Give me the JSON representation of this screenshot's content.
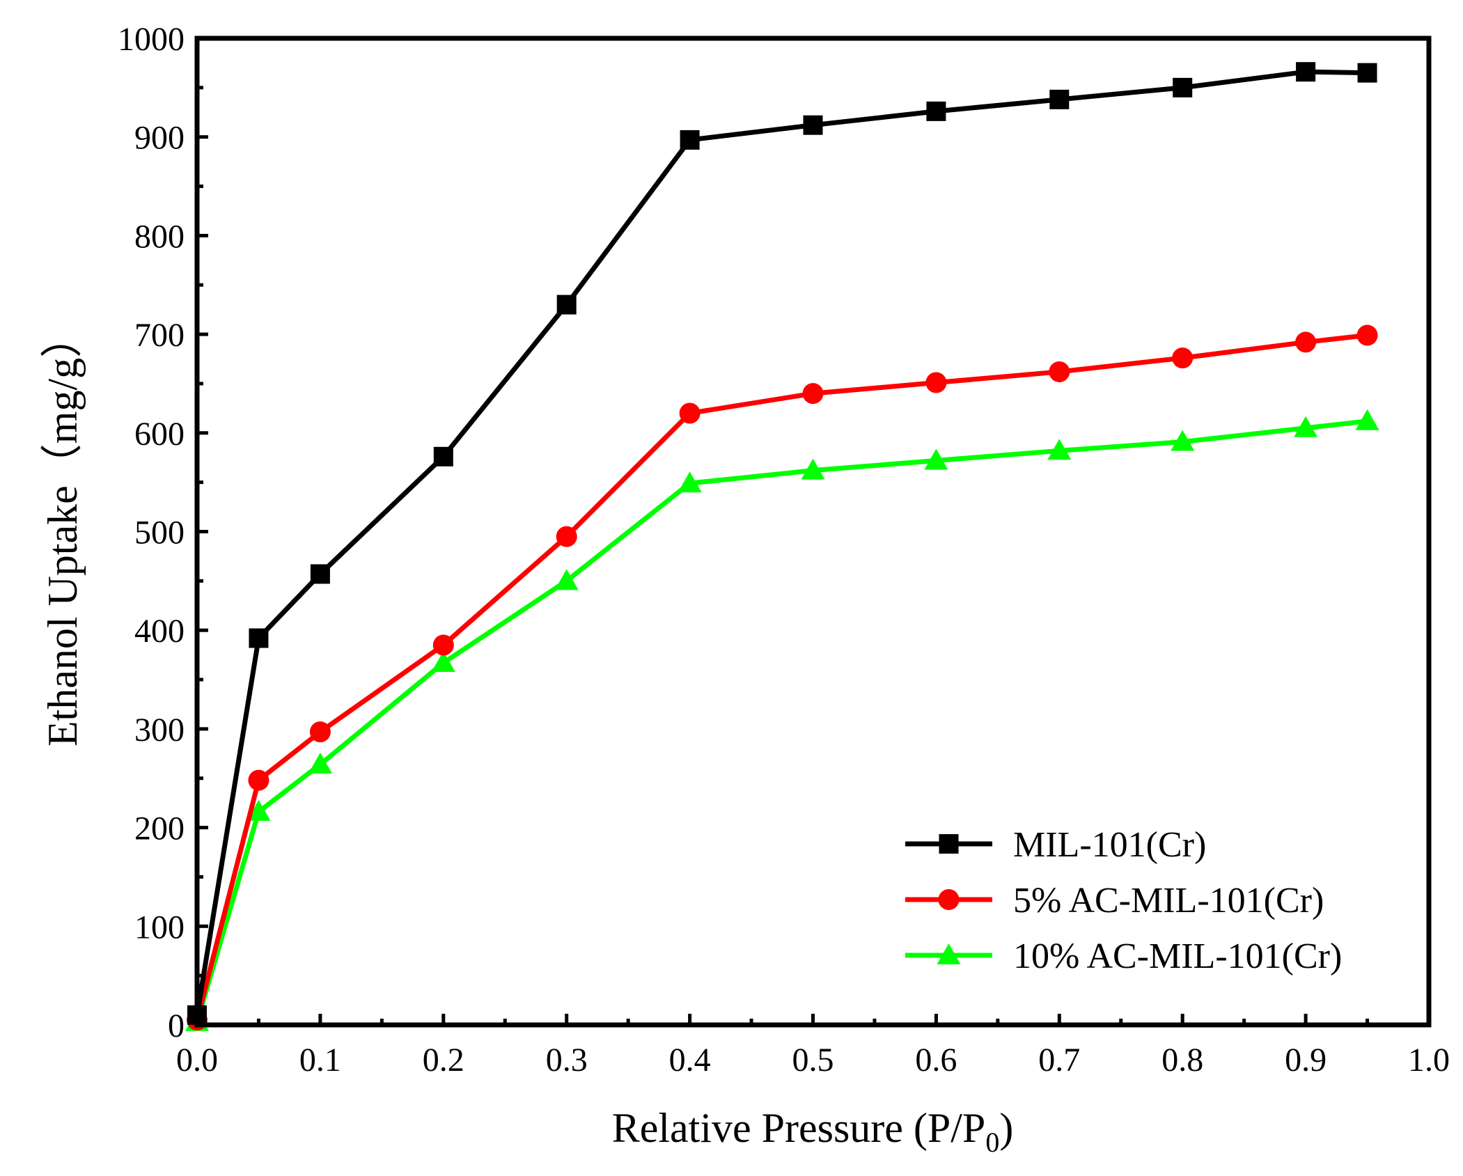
{
  "chart_data": {
    "type": "line",
    "title": "",
    "xlabel_main": "Relative Pressure (P/P",
    "xlabel_sub": "0",
    "xlabel_close": ")",
    "ylabel": "Ethanol Uptake（mg/g）",
    "xlim": [
      0.0,
      1.0
    ],
    "ylim": [
      0,
      1000
    ],
    "x_ticks": [
      "0.0",
      "0.1",
      "0.2",
      "0.3",
      "0.4",
      "0.5",
      "0.6",
      "0.7",
      "0.8",
      "0.9",
      "1.0"
    ],
    "y_ticks": [
      "0",
      "100",
      "200",
      "300",
      "400",
      "500",
      "600",
      "700",
      "800",
      "900",
      "1000"
    ],
    "grid": false,
    "legend_position": "bottom-right",
    "x": [
      0.0,
      0.05,
      0.1,
      0.2,
      0.3,
      0.4,
      0.5,
      0.6,
      0.7,
      0.8,
      0.9,
      0.95
    ],
    "series": [
      {
        "name": "MIL-101(Cr)",
        "color": "#000000",
        "marker": "square",
        "values": [
          10,
          392,
          457,
          576,
          730,
          897,
          912,
          926,
          938,
          950,
          966,
          965
        ]
      },
      {
        "name": "5% AC-MIL-101(Cr)",
        "color": "#ff0000",
        "marker": "circle",
        "values": [
          5,
          248,
          297,
          385,
          495,
          620,
          640,
          651,
          662,
          676,
          692,
          699
        ]
      },
      {
        "name": "10% AC-MIL-101(Cr)",
        "color": "#00ff00",
        "marker": "triangle",
        "values": [
          3,
          216,
          264,
          367,
          450,
          549,
          562,
          572,
          582,
          591,
          605,
          612
        ]
      }
    ]
  }
}
